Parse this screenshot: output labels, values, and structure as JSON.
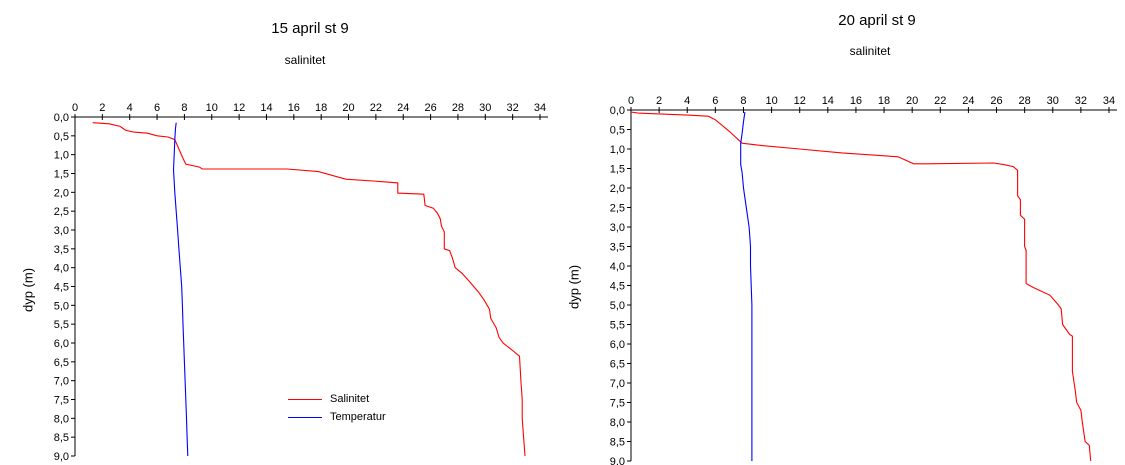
{
  "chart_data": [
    {
      "type": "line",
      "title": "15 april st 9",
      "subtitle": "salinitet",
      "ylabel": "dyp (m)",
      "xlabel": "",
      "xlim": [
        0,
        34
      ],
      "ylim": [
        0,
        9
      ],
      "y_inverted": true,
      "x_ticks": [
        "0",
        "2",
        "4",
        "6",
        "8",
        "10",
        "12",
        "14",
        "16",
        "18",
        "20",
        "22",
        "24",
        "26",
        "28",
        "30",
        "32",
        "34"
      ],
      "y_ticks": [
        "0,0",
        "0,5",
        "1,0",
        "1,5",
        "2,0",
        "2,5",
        "3,0",
        "3,5",
        "4,0",
        "4,5",
        "5,0",
        "5,5",
        "6,0",
        "6,5",
        "7,0",
        "7,5",
        "8,0",
        "8,5",
        "9,0"
      ],
      "legend": {
        "position": "lower-center",
        "entries": [
          "Salinitet",
          "Temperatur"
        ]
      },
      "series": [
        {
          "name": "Salinitet",
          "color": "#ff0000",
          "points": [
            [
              1.3,
              0.15
            ],
            [
              2.5,
              0.18
            ],
            [
              3.3,
              0.25
            ],
            [
              3.7,
              0.35
            ],
            [
              4.3,
              0.4
            ],
            [
              5.3,
              0.43
            ],
            [
              6.0,
              0.5
            ],
            [
              6.8,
              0.53
            ],
            [
              7.3,
              0.6
            ],
            [
              7.6,
              0.85
            ],
            [
              7.9,
              1.1
            ],
            [
              8.1,
              1.25
            ],
            [
              9.1,
              1.33
            ],
            [
              9.3,
              1.38
            ],
            [
              15.5,
              1.38
            ],
            [
              17.8,
              1.45
            ],
            [
              19.8,
              1.65
            ],
            [
              21.8,
              1.7
            ],
            [
              23.6,
              1.75
            ],
            [
              23.6,
              2.02
            ],
            [
              25.5,
              2.05
            ],
            [
              25.6,
              2.35
            ],
            [
              26.2,
              2.42
            ],
            [
              26.5,
              2.55
            ],
            [
              26.7,
              2.7
            ],
            [
              26.8,
              2.9
            ],
            [
              27.0,
              3.05
            ],
            [
              27.0,
              3.5
            ],
            [
              27.4,
              3.55
            ],
            [
              27.6,
              3.75
            ],
            [
              27.8,
              4.0
            ],
            [
              28.3,
              4.15
            ],
            [
              28.8,
              4.35
            ],
            [
              29.5,
              4.65
            ],
            [
              29.9,
              4.85
            ],
            [
              30.3,
              5.1
            ],
            [
              30.4,
              5.35
            ],
            [
              30.8,
              5.6
            ],
            [
              31.0,
              5.85
            ],
            [
              31.3,
              6.0
            ],
            [
              32.0,
              6.2
            ],
            [
              32.5,
              6.35
            ],
            [
              32.6,
              7.0
            ],
            [
              32.7,
              7.5
            ],
            [
              32.7,
              8.0
            ],
            [
              32.8,
              8.5
            ],
            [
              32.9,
              9.0
            ]
          ]
        },
        {
          "name": "Temperatur",
          "color": "#0000ff",
          "points": [
            [
              7.4,
              0.15
            ],
            [
              7.35,
              0.3
            ],
            [
              7.3,
              0.6
            ],
            [
              7.25,
              1.0
            ],
            [
              7.2,
              1.4
            ],
            [
              7.3,
              2.0
            ],
            [
              7.4,
              2.5
            ],
            [
              7.5,
              3.0
            ],
            [
              7.6,
              3.5
            ],
            [
              7.7,
              4.0
            ],
            [
              7.8,
              4.5
            ],
            [
              7.85,
              5.0
            ],
            [
              7.9,
              5.5
            ],
            [
              7.95,
              6.0
            ],
            [
              8.0,
              6.5
            ],
            [
              8.05,
              7.0
            ],
            [
              8.1,
              7.5
            ],
            [
              8.15,
              8.0
            ],
            [
              8.2,
              8.5
            ],
            [
              8.25,
              9.0
            ]
          ]
        }
      ]
    },
    {
      "type": "line",
      "title": "20 april st 9",
      "subtitle": "salinitet",
      "ylabel": "dyp (m)",
      "xlabel": "",
      "xlim": [
        0,
        34
      ],
      "ylim": [
        0,
        9
      ],
      "y_inverted": true,
      "x_ticks": [
        "0",
        "2",
        "4",
        "6",
        "8",
        "10",
        "12",
        "14",
        "16",
        "18",
        "20",
        "22",
        "24",
        "26",
        "28",
        "30",
        "32",
        "34"
      ],
      "y_ticks": [
        "0,0",
        "0,5",
        "1,0",
        "1,5",
        "2,0",
        "2,5",
        "3,0",
        "3,5",
        "4,0",
        "4,5",
        "5,0",
        "5,5",
        "6,0",
        "6,5",
        "7,0",
        "7,5",
        "8,0",
        "8,5",
        "9,0"
      ],
      "legend": null,
      "series": [
        {
          "name": "Salinitet",
          "color": "#ff0000",
          "points": [
            [
              0,
              0.05
            ],
            [
              0.5,
              0.08
            ],
            [
              2.0,
              0.1
            ],
            [
              4.0,
              0.13
            ],
            [
              5.5,
              0.16
            ],
            [
              6.0,
              0.25
            ],
            [
              7.0,
              0.55
            ],
            [
              7.9,
              0.85
            ],
            [
              9.0,
              0.9
            ],
            [
              12.0,
              1.0
            ],
            [
              15.0,
              1.1
            ],
            [
              19.0,
              1.2
            ],
            [
              20.1,
              1.38
            ],
            [
              21.0,
              1.38
            ],
            [
              25.8,
              1.36
            ],
            [
              26.5,
              1.4
            ],
            [
              27.2,
              1.45
            ],
            [
              27.5,
              1.55
            ],
            [
              27.5,
              2.2
            ],
            [
              27.7,
              2.3
            ],
            [
              27.7,
              2.7
            ],
            [
              28.0,
              2.8
            ],
            [
              28.0,
              3.5
            ],
            [
              28.1,
              3.6
            ],
            [
              28.1,
              4.45
            ],
            [
              28.6,
              4.55
            ],
            [
              29.8,
              4.75
            ],
            [
              30.4,
              5.0
            ],
            [
              30.6,
              5.1
            ],
            [
              30.7,
              5.5
            ],
            [
              31.2,
              5.75
            ],
            [
              31.4,
              5.8
            ],
            [
              31.4,
              6.7
            ],
            [
              31.6,
              7.2
            ],
            [
              31.7,
              7.5
            ],
            [
              32.0,
              7.7
            ],
            [
              32.1,
              8.0
            ],
            [
              32.3,
              8.5
            ],
            [
              32.6,
              8.6
            ],
            [
              32.7,
              9.0
            ]
          ]
        },
        {
          "name": "Temperatur",
          "color": "#0000ff",
          "points": [
            [
              8.1,
              0.05
            ],
            [
              8.0,
              0.3
            ],
            [
              7.9,
              0.6
            ],
            [
              7.8,
              0.85
            ],
            [
              7.8,
              1.4
            ],
            [
              7.9,
              1.6
            ],
            [
              8.0,
              2.0
            ],
            [
              8.2,
              2.5
            ],
            [
              8.4,
              3.0
            ],
            [
              8.5,
              3.5
            ],
            [
              8.5,
              4.0
            ],
            [
              8.55,
              4.5
            ],
            [
              8.6,
              5.0
            ],
            [
              8.6,
              6.0
            ],
            [
              8.6,
              7.0
            ],
            [
              8.6,
              8.0
            ],
            [
              8.6,
              9.0
            ]
          ]
        }
      ]
    }
  ]
}
